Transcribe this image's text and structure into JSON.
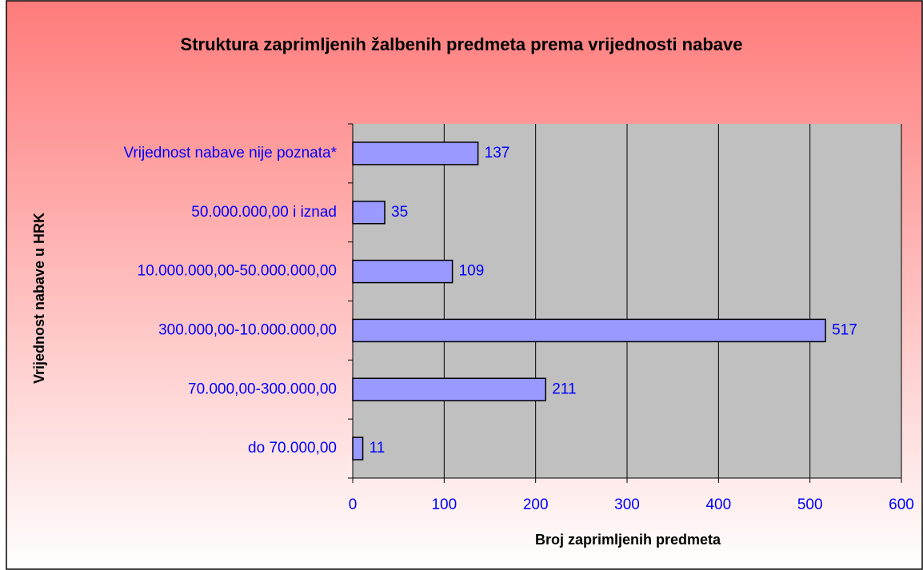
{
  "chart_data": {
    "type": "bar",
    "orientation": "horizontal",
    "title": "Struktura zaprimljenih žalbenih predmeta prema vrijednosti nabave",
    "x_label": "Broj zaprimljenih predmeta",
    "y_label": "Vrijednost nabave u HRK",
    "categories": [
      "Vrijednost nabave nije poznata*",
      "50.000.000,00 i iznad",
      "10.000.000,00-50.000.000,00",
      "300.000,00-10.000.000,00",
      "70.000,00-300.000,00",
      "do 70.000,00"
    ],
    "values": [
      137,
      35,
      109,
      517,
      211,
      11
    ],
    "color": "#9999ff",
    "xlim": [
      0,
      600
    ],
    "xticks": [
      0,
      100,
      200,
      300,
      400,
      500,
      600
    ],
    "grid": true
  }
}
